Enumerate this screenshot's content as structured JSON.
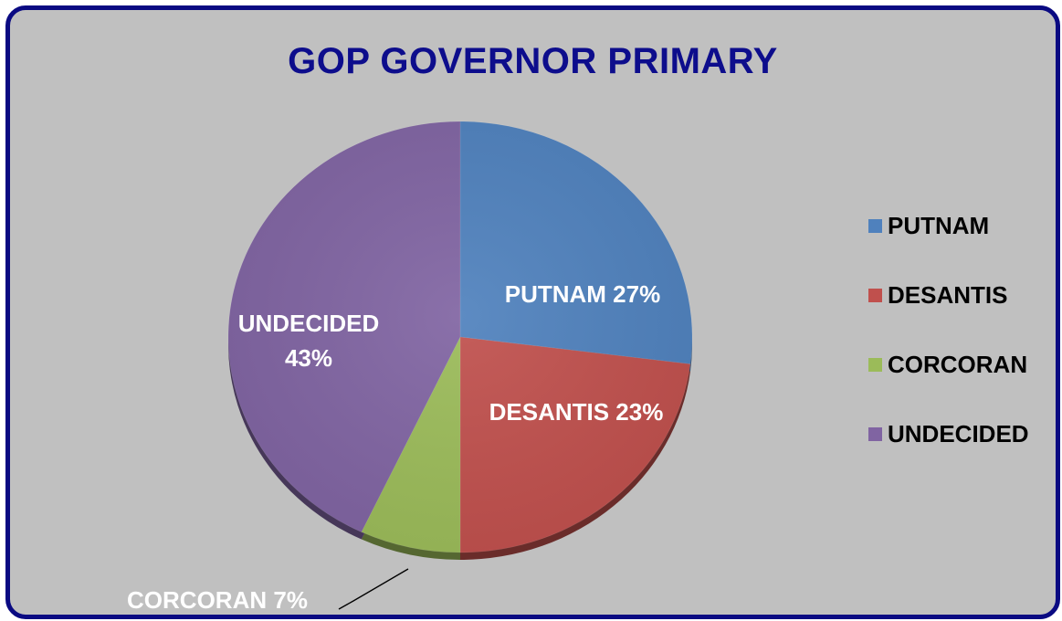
{
  "chart_data": {
    "type": "pie",
    "title": "GOP GOVERNOR PRIMARY",
    "slices": [
      {
        "name": "PUTNAM",
        "value": 27,
        "label_line1": "PUTNAM 27%",
        "label_line2": "",
        "color": "#4f81bd"
      },
      {
        "name": "DESANTIS",
        "value": 23,
        "label_line1": "DESANTIS 23%",
        "label_line2": "",
        "color": "#c0504d"
      },
      {
        "name": "CORCORAN",
        "value": 7,
        "label_line1": "CORCORAN 7%",
        "label_line2": "",
        "color": "#9bbb59"
      },
      {
        "name": "UNDECIDED",
        "value": 43,
        "label_line1": "UNDECIDED",
        "label_line2": "43%",
        "color": "#8064a2"
      }
    ],
    "legend_position": "right",
    "border_color": "#0a0a82",
    "background_color": "#c0c0c0",
    "title_color": "#0d0d8c"
  }
}
